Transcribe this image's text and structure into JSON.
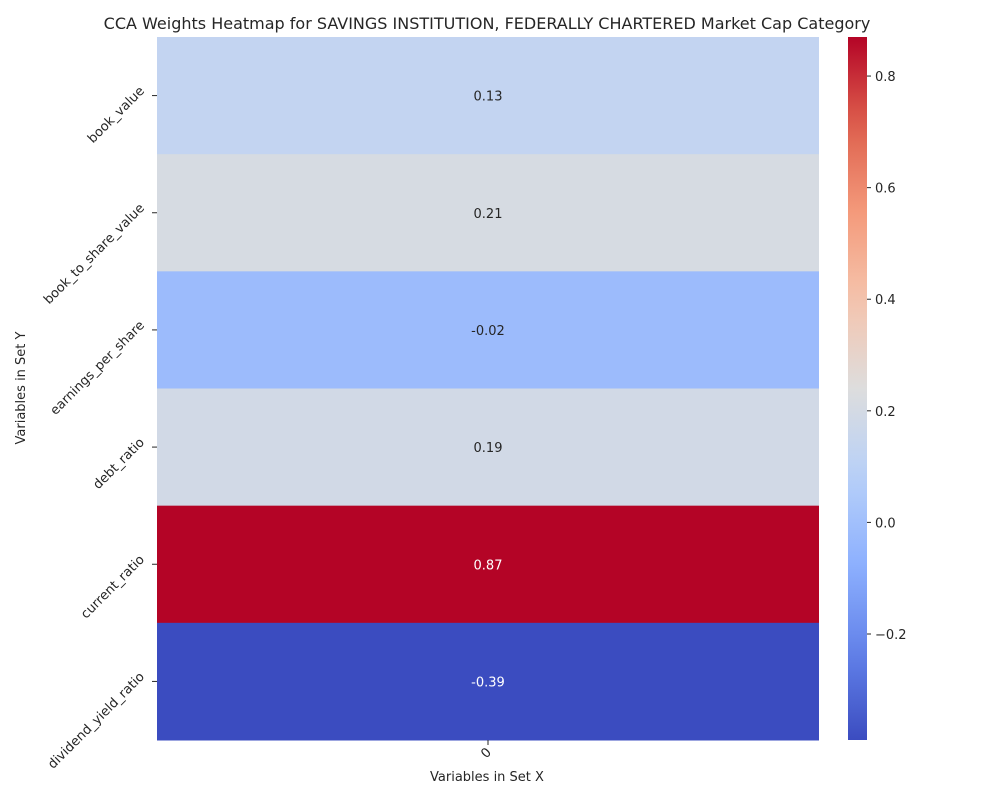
{
  "chart_data": {
    "type": "heatmap",
    "title": "CCA Weights Heatmap for SAVINGS INSTITUTION, FEDERALLY CHARTERED Market Cap Category",
    "xlabel": "Variables in Set X",
    "ylabel": "Variables in Set Y",
    "x_categories": [
      "0"
    ],
    "y_categories": [
      "book_value",
      "book_to_share_value",
      "earnings_per_share",
      "debt_ratio",
      "current_ratio",
      "dividend_yield_ratio"
    ],
    "values": [
      [
        0.13
      ],
      [
        0.21
      ],
      [
        -0.02
      ],
      [
        0.19
      ],
      [
        0.87
      ],
      [
        -0.39
      ]
    ],
    "colormap": "coolwarm",
    "vmin": -0.39,
    "vmax": 0.87,
    "colorbar_ticks": [
      -0.2,
      0.0,
      0.2,
      0.4,
      0.6,
      0.8
    ],
    "colorbar_tick_labels": [
      "−0.2",
      "0.0",
      "0.2",
      "0.4",
      "0.6",
      "0.8"
    ],
    "annotations": true
  }
}
